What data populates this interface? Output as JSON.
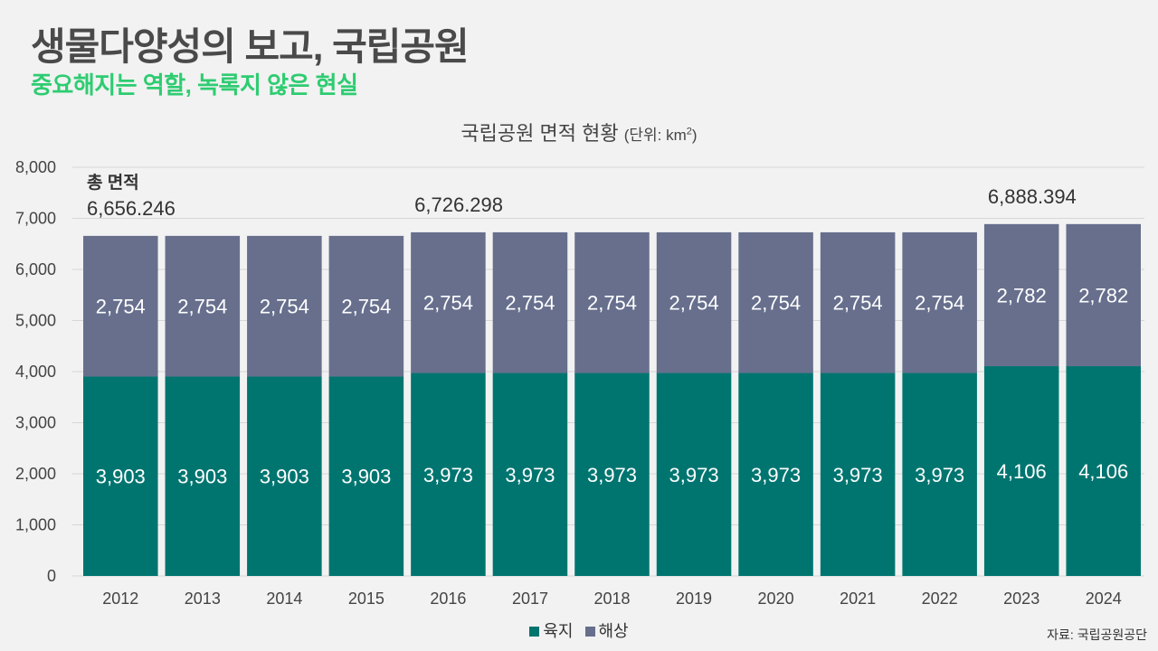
{
  "header": {
    "title": "생물다양성의 보고, 국립공원",
    "subtitle": "중요해지는 역할, 녹록지 않은 현실"
  },
  "chart_title": {
    "main": "국립공원 면적 현황",
    "unit_prefix": "(단위: km",
    "unit_sup": "2",
    "unit_suffix": ")"
  },
  "source": "자료: 국립공원공단",
  "colors": {
    "land": "#007570",
    "sea": "#676f8d",
    "grid": "#d6d6d6"
  },
  "chart_data": {
    "type": "bar",
    "stacked": true,
    "categories": [
      "2012",
      "2013",
      "2014",
      "2015",
      "2016",
      "2017",
      "2018",
      "2019",
      "2020",
      "2021",
      "2022",
      "2023",
      "2024"
    ],
    "series": [
      {
        "name": "육지",
        "values": [
          3903,
          3903,
          3903,
          3903,
          3973,
          3973,
          3973,
          3973,
          3973,
          3973,
          3973,
          4106,
          4106
        ]
      },
      {
        "name": "해상",
        "values": [
          2754,
          2754,
          2754,
          2754,
          2754,
          2754,
          2754,
          2754,
          2754,
          2754,
          2754,
          2782,
          2782
        ]
      }
    ],
    "value_labels": {
      "land": [
        "3,903",
        "3,903",
        "3,903",
        "3,903",
        "3,973",
        "3,973",
        "3,973",
        "3,973",
        "3,973",
        "3,973",
        "3,973",
        "4,106",
        "4,106"
      ],
      "sea": [
        "2,754",
        "2,754",
        "2,754",
        "2,754",
        "2,754",
        "2,754",
        "2,754",
        "2,754",
        "2,754",
        "2,754",
        "2,754",
        "2,782",
        "2,782"
      ]
    },
    "yticks": [
      0,
      1000,
      2000,
      3000,
      4000,
      5000,
      6000,
      7000,
      8000
    ],
    "ytick_labels": [
      "0",
      "1,000",
      "2,000",
      "3,000",
      "4,000",
      "5,000",
      "6,000",
      "7,000",
      "8,000"
    ],
    "ylim": [
      0,
      8000
    ],
    "totals": [
      {
        "category": "2012",
        "label": "총 면적",
        "value": 6656.246,
        "text": "6,656.246"
      },
      {
        "category": "2016",
        "label": "",
        "value": 6726.298,
        "text": "6,726.298"
      },
      {
        "category": "2023",
        "label": "",
        "value": 6888.394,
        "text": "6,888.394"
      }
    ],
    "legend": [
      "육지",
      "해상"
    ]
  }
}
